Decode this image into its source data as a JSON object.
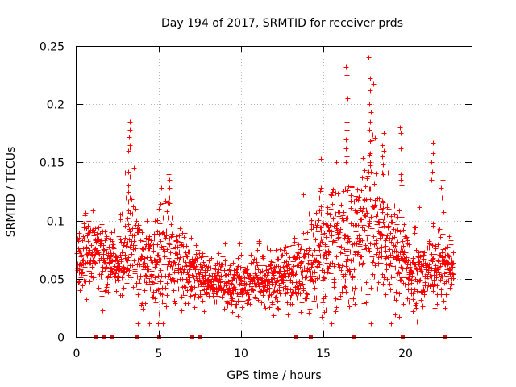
{
  "chart_data": {
    "type": "scatter",
    "title": "Day 194 of 2017, SRMTID for receiver prds",
    "xlabel": "GPS time / hours",
    "ylabel": "SRMTID / TECUs",
    "xlim": [
      0,
      24
    ],
    "ylim": [
      0,
      0.25
    ],
    "x_ticks": [
      0,
      5,
      10,
      15,
      20
    ],
    "y_ticks": [
      0,
      0.05,
      0.1,
      0.15,
      0.2,
      0.25
    ],
    "x_tick_labels": [
      "0",
      "5",
      "10",
      "15",
      "20"
    ],
    "y_tick_labels": [
      "0",
      "0.05",
      "0.1",
      "0.15",
      "0.2",
      "0.25"
    ],
    "grid": true,
    "point_style": "plus",
    "color": "#ff0000",
    "baseline_markers_x": [
      1.15,
      1.6,
      2.1,
      3.6,
      5.0,
      7.0,
      7.5,
      13.3,
      14.2,
      16.8,
      19.8,
      22.4
    ],
    "profile": {
      "x": [
        0,
        0.5,
        1.5,
        2.5,
        3.0,
        3.3,
        3.7,
        4.5,
        5.3,
        6.0,
        7.0,
        8.0,
        9.0,
        10.0,
        11.0,
        12.0,
        13.0,
        14.0,
        14.6,
        15.2,
        16.0,
        16.5,
        17.0,
        17.7,
        18.3,
        19.0,
        19.7,
        20.3,
        21.0,
        21.6,
        22.5,
        22.9
      ],
      "median": [
        0.065,
        0.075,
        0.068,
        0.062,
        0.07,
        0.085,
        0.067,
        0.06,
        0.075,
        0.063,
        0.055,
        0.048,
        0.045,
        0.046,
        0.05,
        0.048,
        0.055,
        0.06,
        0.07,
        0.072,
        0.075,
        0.08,
        0.085,
        0.095,
        0.085,
        0.075,
        0.07,
        0.06,
        0.055,
        0.06,
        0.06,
        0.055
      ],
      "spread": [
        0.015,
        0.02,
        0.016,
        0.016,
        0.022,
        0.035,
        0.02,
        0.02,
        0.028,
        0.018,
        0.014,
        0.013,
        0.012,
        0.013,
        0.014,
        0.013,
        0.016,
        0.018,
        0.025,
        0.027,
        0.03,
        0.035,
        0.035,
        0.045,
        0.035,
        0.03,
        0.026,
        0.02,
        0.018,
        0.02,
        0.018,
        0.016
      ],
      "spikes": [
        {
          "x": 3.2,
          "values": [
            0.185,
            0.178,
            0.172,
            0.165,
            0.16,
            0.142,
            0.138,
            0.13,
            0.125,
            0.12
          ]
        },
        {
          "x": 5.6,
          "values": [
            0.145,
            0.14,
            0.135,
            0.128,
            0.12,
            0.115
          ]
        },
        {
          "x": 14.8,
          "values": [
            0.153,
            0.128,
            0.12,
            0.112
          ]
        },
        {
          "x": 16.4,
          "values": [
            0.232,
            0.225,
            0.205,
            0.195,
            0.185,
            0.178,
            0.17,
            0.162,
            0.155,
            0.15
          ]
        },
        {
          "x": 17.8,
          "values": [
            0.24,
            0.222,
            0.212,
            0.2,
            0.185,
            0.178,
            0.168,
            0.158,
            0.15,
            0.142
          ]
        },
        {
          "x": 18.6,
          "values": [
            0.175,
            0.165,
            0.16,
            0.155,
            0.148,
            0.14
          ]
        },
        {
          "x": 19.7,
          "values": [
            0.18,
            0.175,
            0.162,
            0.14,
            0.135,
            0.13
          ]
        },
        {
          "x": 21.6,
          "values": [
            0.167,
            0.158,
            0.15,
            0.142,
            0.135
          ]
        },
        {
          "x": 22.2,
          "values": [
            0.135,
            0.128,
            0.12
          ]
        }
      ],
      "n_points": 1900,
      "seed": 194
    }
  }
}
